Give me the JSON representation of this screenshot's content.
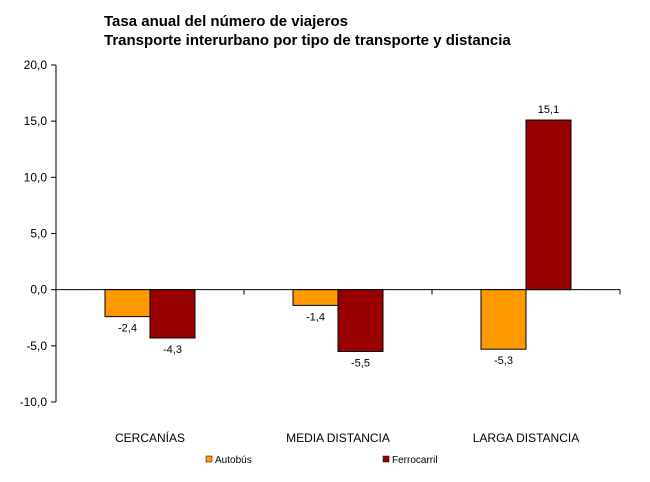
{
  "chart_data": {
    "type": "bar",
    "title": "Tasa anual del número de viajeros",
    "subtitle": "Transporte interurbano por tipo de transporte y distancia",
    "categories": [
      "CERCANÍAS",
      "MEDIA DISTANCIA",
      "LARGA DISTANCIA"
    ],
    "series": [
      {
        "name": "Autobús",
        "values": [
          -2.4,
          -1.4,
          -5.3
        ],
        "labels": [
          "-2,4",
          "-1,4",
          "-5,3"
        ],
        "color": "#ff9900"
      },
      {
        "name": "Ferrocarril",
        "values": [
          -4.3,
          -5.5,
          15.1
        ],
        "labels": [
          "-4,3",
          "-5,5",
          "15,1"
        ],
        "color": "#990000"
      }
    ],
    "ylim": [
      -10,
      20
    ],
    "yticks": [
      20,
      15,
      10,
      5,
      0,
      -5,
      -10
    ],
    "ytick_labels": [
      "20,0",
      "15,0",
      "10,0",
      "5,0",
      "0,0",
      "-5,0",
      "-10,0"
    ],
    "grid": false,
    "legend_position": "bottom"
  }
}
